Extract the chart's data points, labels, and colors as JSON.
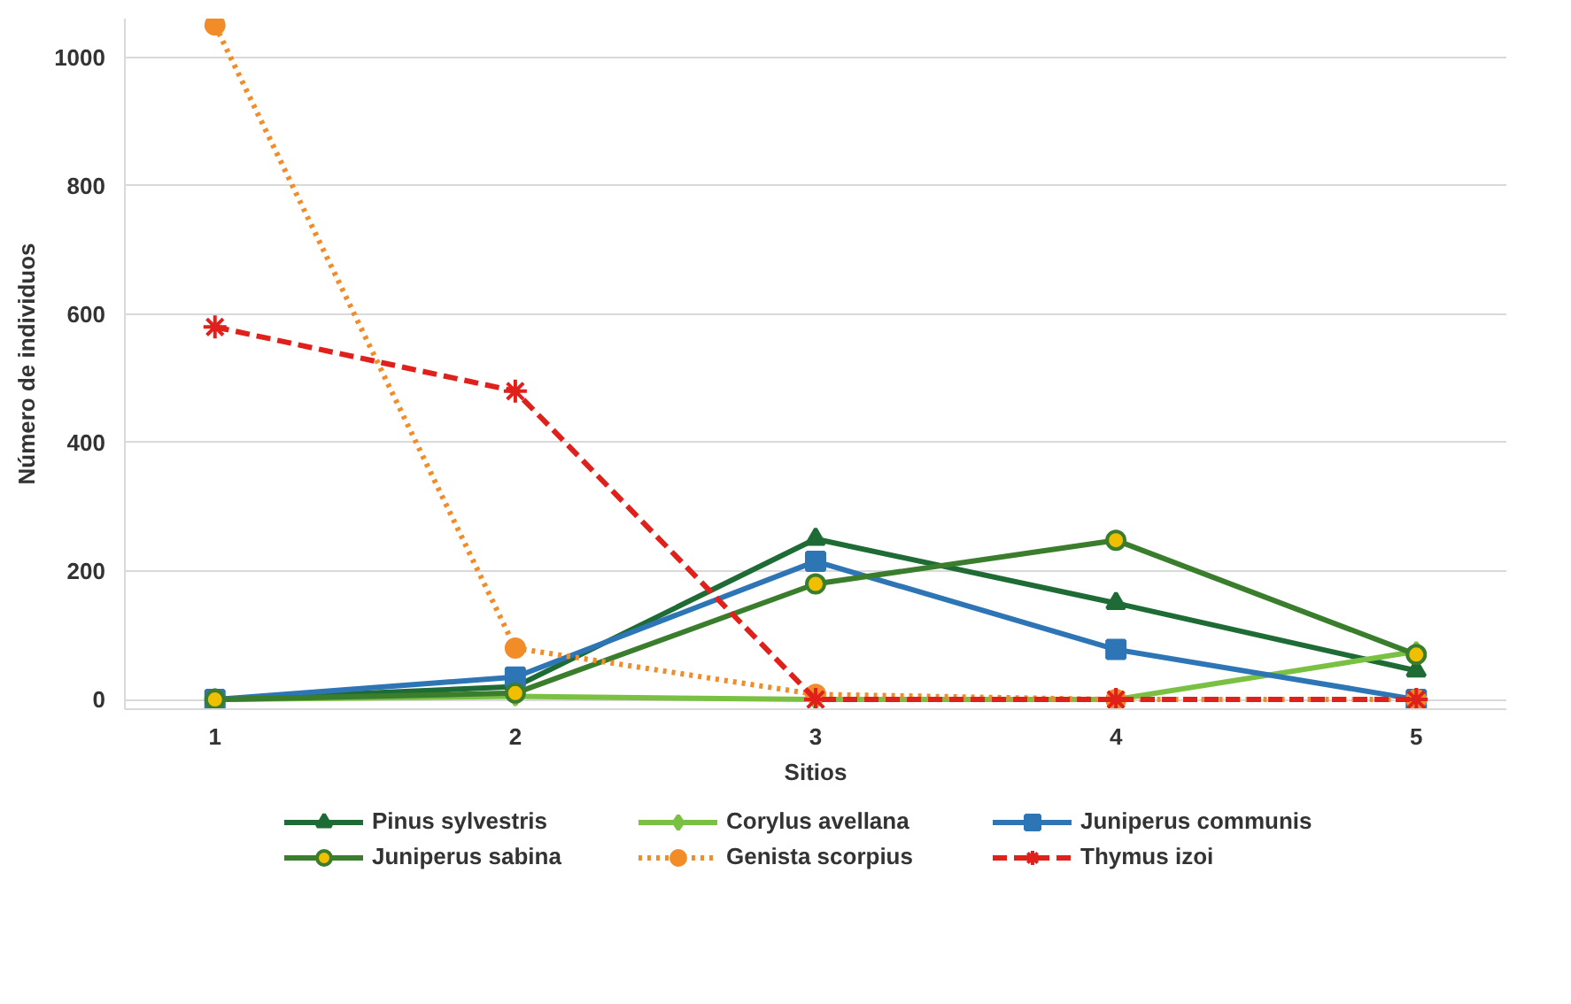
{
  "chart_data": {
    "type": "line",
    "xlabel": "Sitios",
    "ylabel": "Número de individuos",
    "x": [
      1,
      2,
      3,
      4,
      5
    ],
    "xlim": [
      0.7,
      5.3
    ],
    "xticks": [
      1,
      2,
      3,
      4,
      5
    ],
    "ylim": [
      -15,
      1060
    ],
    "yticks": [
      0,
      200,
      400,
      600,
      800,
      1000
    ],
    "grid": "y",
    "legend": "bottom",
    "series": [
      {
        "name": "Pinus sylvestris",
        "color": "#1e6b35",
        "values": [
          0,
          20,
          250,
          150,
          45
        ],
        "marker": "triangle",
        "line_style": "solid"
      },
      {
        "name": "Corylus avellana",
        "color": "#7ac143",
        "values": [
          0,
          5,
          0,
          0,
          75
        ],
        "marker": "diamond",
        "line_style": "solid"
      },
      {
        "name": "Juniperus communis",
        "color": "#2e75b6",
        "values": [
          0,
          35,
          215,
          78,
          0
        ],
        "marker": "square",
        "line_style": "solid"
      },
      {
        "name": "Juniperus sabina",
        "color": "#3a7d2c",
        "values": [
          0,
          10,
          180,
          248,
          70
        ],
        "marker": "circle",
        "line_style": "solid"
      },
      {
        "name": "Genista scorpius",
        "color": "#f28c28",
        "values": [
          1050,
          80,
          8,
          0,
          0
        ],
        "marker": "circle",
        "line_style": "dotted"
      },
      {
        "name": "Thymus izoi",
        "color": "#e0201b",
        "values": [
          580,
          480,
          0,
          0,
          0
        ],
        "marker": "cross",
        "line_style": "dashed"
      }
    ]
  }
}
